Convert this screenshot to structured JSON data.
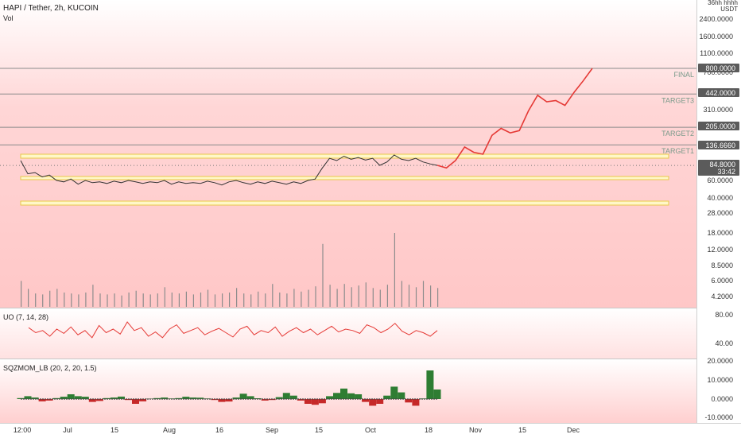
{
  "header": {
    "symbol_title": "HAPI / Tether, 2h, KUCOIN",
    "vol_label": "Vol"
  },
  "price_scale": {
    "top_labels": [
      "36hh hhhh",
      "USDT"
    ],
    "ticks": [
      "2400.0000",
      "1600.0000",
      "1100.0000",
      "700.0000",
      "310.0000",
      "60.0000",
      "40.0000",
      "28.0000",
      "18.0000",
      "12.0000",
      "8.5000",
      "6.0000",
      "4.2000"
    ],
    "badges": [
      {
        "text": "800.0000",
        "style": "dark"
      },
      {
        "text": "442.0000",
        "style": "dark"
      },
      {
        "text": "205.0000",
        "style": "dark"
      },
      {
        "text": "136.6660",
        "style": "dark"
      },
      {
        "text": "84.8000",
        "style": "dark"
      },
      {
        "text": "33:42",
        "style": "dark"
      }
    ]
  },
  "levels": [
    {
      "label": "FINAL",
      "price": 800
    },
    {
      "label": "TARGET3",
      "price": 442
    },
    {
      "label": "TARGET2",
      "price": 205
    },
    {
      "label": "TARGET1",
      "price": 136.666
    }
  ],
  "current_price": "84.8000",
  "countdown": "33:42",
  "uo": {
    "title": "UO (7, 14, 28)",
    "ticks": [
      "80.00",
      "40.00"
    ]
  },
  "sqz": {
    "title": "SQZMOM_LB (20, 2, 20, 1.5)",
    "ticks": [
      "20.0000",
      "10.0000",
      "0.0000",
      "-10.0000"
    ]
  },
  "time_axis": {
    "labels": [
      "12:00",
      "Jul",
      "15",
      "Aug",
      "16",
      "Sep",
      "15",
      "Oct",
      "18",
      "Nov",
      "15",
      "Dec"
    ]
  },
  "colors": {
    "accent_red": "#e53935",
    "level_line": "#8a8a8a",
    "band_border": "#e8c84a",
    "badge_dark": "#5b5b5b",
    "squeeze_green": "#2e7d32",
    "squeeze_red": "#c62828"
  },
  "chart_data": {
    "type": "line",
    "y_scale": "log",
    "series": [
      {
        "values": [
          95,
          70,
          72,
          65,
          68,
          60,
          58,
          62,
          55,
          60,
          57,
          58,
          56,
          59,
          57,
          60,
          58,
          56,
          58,
          57,
          60,
          55,
          58,
          56,
          57,
          56,
          59,
          57,
          54,
          58,
          60,
          57,
          55,
          58,
          56,
          59,
          57,
          55,
          58,
          56,
          60,
          62,
          80,
          100,
          95,
          105,
          98,
          102,
          96,
          100,
          85,
          92,
          108,
          98,
          95,
          100,
          92,
          88,
          85
        ]
      }
    ],
    "projection": [
      85,
      80,
      95,
      130,
      115,
      110,
      170,
      200,
      180,
      190,
      300,
      430,
      370,
      380,
      340,
      460,
      600,
      800
    ],
    "volume": [
      6,
      5,
      4.5,
      4.4,
      4.8,
      5,
      4.6,
      4.5,
      4.4,
      4.6,
      5.5,
      4.5,
      4.4,
      4.5,
      4.3,
      4.6,
      4.8,
      4.5,
      4.4,
      4.5,
      5.2,
      4.6,
      4.5,
      4.7,
      4.4,
      4.6,
      4.9,
      4.4,
      4.5,
      4.6,
      5.1,
      4.5,
      4.4,
      4.7,
      4.5,
      5.6,
      4.6,
      4.5,
      5.0,
      4.7,
      4.9,
      5.3,
      14,
      5.5,
      5,
      5.6,
      5.2,
      5.4,
      5.8,
      5.1,
      4.9,
      5.5,
      18,
      6,
      5.5,
      5.2,
      6,
      5.4,
      5.1
    ],
    "uo": [
      62,
      55,
      58,
      50,
      60,
      54,
      63,
      52,
      58,
      48,
      65,
      55,
      60,
      53,
      70,
      58,
      62,
      50,
      56,
      48,
      60,
      66,
      54,
      58,
      62,
      52,
      57,
      61,
      55,
      49,
      60,
      64,
      52,
      58,
      55,
      63,
      50,
      57,
      62,
      55,
      60,
      52,
      58,
      64,
      56,
      60,
      58,
      54,
      66,
      62,
      55,
      60,
      68,
      57,
      52,
      58,
      55,
      50,
      58
    ],
    "sqzmom": [
      0.5,
      1.5,
      0.8,
      -1.2,
      -0.8,
      0.5,
      1.2,
      2.5,
      1.5,
      1.2,
      -1.5,
      -1,
      0.5,
      0.8,
      1.3,
      -0.5,
      -2.5,
      -1.2,
      0.2,
      0.5,
      0.8,
      0.3,
      0.5,
      1.2,
      0.8,
      0.7,
      0.3,
      -0.5,
      -1.5,
      -1.3,
      0.8,
      2.8,
      1.5,
      0.4,
      -0.8,
      -0.5,
      1.0,
      3.2,
      1.8,
      -0.8,
      -2.5,
      -3,
      -2.2,
      1.5,
      3.2,
      5.5,
      3,
      2.5,
      -1.5,
      -3.5,
      -2.5,
      1.8,
      6.5,
      3.5,
      -1.8,
      -3.5,
      0.3,
      15,
      5
    ]
  }
}
